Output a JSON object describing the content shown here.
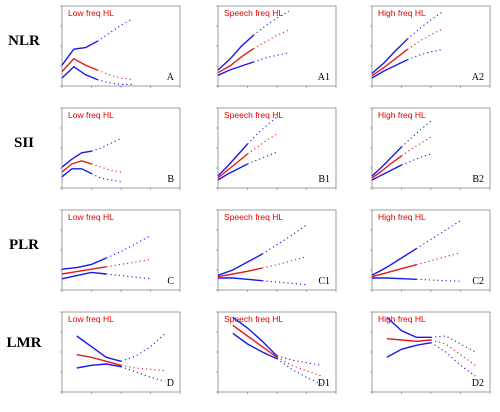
{
  "colors": {
    "fit": "#1a1ae6",
    "ci": "#e61a1a",
    "axis": "#777777",
    "title": "#e60000",
    "text": "#000000"
  },
  "chart_data": [
    {
      "type": "line",
      "row": "NLR",
      "title": "Low freq HL",
      "panel_label": "A",
      "x": [
        0,
        2,
        4,
        6,
        8,
        10,
        12
      ],
      "y": [
        0.9,
        1.7,
        1.3,
        1.0,
        0.7,
        0.5,
        0.4
      ],
      "ci_low": [
        0.5,
        1.2,
        0.7,
        0.4,
        0.2,
        0.1,
        0.1
      ],
      "ci_high": [
        1.3,
        2.3,
        2.4,
        2.8,
        3.3,
        3.8,
        4.2
      ],
      "xlim": [
        0,
        20
      ],
      "ylim": [
        0,
        5
      ]
    },
    {
      "type": "line",
      "row": "NLR",
      "title": "Speech freq HL",
      "panel_label": "A1",
      "x": [
        0,
        2,
        4,
        6,
        8,
        10,
        12
      ],
      "y": [
        1.0,
        1.5,
        2.2,
        2.8,
        3.3,
        3.8,
        4.2
      ],
      "ci_low": [
        0.8,
        1.2,
        1.5,
        1.8,
        2.1,
        2.3,
        2.5
      ],
      "ci_high": [
        1.2,
        2.0,
        3.0,
        3.8,
        4.5,
        5.1,
        5.6
      ],
      "xlim": [
        0,
        20
      ],
      "ylim": [
        0,
        6
      ]
    },
    {
      "type": "line",
      "row": "NLR",
      "title": "High freq HL",
      "panel_label": "A2",
      "x": [
        0,
        2,
        4,
        6,
        8,
        10,
        12
      ],
      "y": [
        0.9,
        1.6,
        2.4,
        3.2,
        3.9,
        4.5,
        5.0
      ],
      "ci_low": [
        0.7,
        1.3,
        1.8,
        2.3,
        2.7,
        3.0,
        3.2
      ],
      "ci_high": [
        1.1,
        2.0,
        3.1,
        4.1,
        5.0,
        5.8,
        6.5
      ],
      "xlim": [
        0,
        20
      ],
      "ylim": [
        0,
        7
      ]
    },
    {
      "type": "line",
      "row": "SII",
      "title": "Low freq HL",
      "panel_label": "B",
      "x": [
        0,
        500,
        1000,
        1500,
        2000,
        2500,
        3000
      ],
      "y": [
        1.0,
        1.5,
        1.7,
        1.5,
        1.3,
        1.1,
        1.0
      ],
      "ci_low": [
        0.7,
        1.2,
        1.2,
        0.9,
        0.6,
        0.5,
        0.4
      ],
      "ci_high": [
        1.3,
        1.8,
        2.2,
        2.3,
        2.5,
        2.8,
        3.1
      ],
      "xlim": [
        0,
        6000
      ],
      "ylim": [
        0,
        5
      ]
    },
    {
      "type": "line",
      "row": "SII",
      "title": "Speech freq HL",
      "panel_label": "B1",
      "x": [
        0,
        500,
        1000,
        1500,
        2000,
        2500,
        3000
      ],
      "y": [
        1.0,
        1.8,
        2.6,
        3.4,
        4.1,
        4.8,
        5.4
      ],
      "ci_low": [
        0.8,
        1.4,
        1.9,
        2.4,
        2.8,
        3.2,
        3.6
      ],
      "ci_high": [
        1.2,
        2.2,
        3.3,
        4.4,
        5.4,
        6.3,
        7.1
      ],
      "xlim": [
        0,
        6000
      ],
      "ylim": [
        0,
        8
      ]
    },
    {
      "type": "line",
      "row": "SII",
      "title": "High freq HL",
      "panel_label": "B2",
      "x": [
        0,
        500,
        1000,
        1500,
        2000,
        2500,
        3000
      ],
      "y": [
        1.0,
        1.7,
        2.5,
        3.2,
        3.9,
        4.5,
        5.1
      ],
      "ci_low": [
        0.8,
        1.3,
        1.8,
        2.3,
        2.7,
        3.1,
        3.4
      ],
      "ci_high": [
        1.2,
        2.1,
        3.1,
        4.1,
        5.0,
        5.9,
        6.7
      ],
      "xlim": [
        0,
        6000
      ],
      "ylim": [
        0,
        8
      ]
    },
    {
      "type": "line",
      "row": "PLR",
      "title": "Low freq HL",
      "panel_label": "C",
      "x": [
        0,
        50,
        100,
        150,
        200,
        250,
        300
      ],
      "y": [
        1.0,
        1.15,
        1.3,
        1.45,
        1.6,
        1.75,
        1.9
      ],
      "ci_low": [
        0.7,
        0.9,
        1.1,
        1.0,
        0.9,
        0.8,
        0.7
      ],
      "ci_high": [
        1.3,
        1.4,
        1.6,
        2.0,
        2.4,
        2.9,
        3.4
      ],
      "xlim": [
        0,
        400
      ],
      "ylim": [
        0,
        5
      ]
    },
    {
      "type": "line",
      "row": "PLR",
      "title": "Speech freq HL",
      "panel_label": "C1",
      "x": [
        0,
        50,
        100,
        150,
        200,
        250,
        300
      ],
      "y": [
        1.0,
        1.2,
        1.4,
        1.65,
        1.9,
        2.2,
        2.5
      ],
      "ci_low": [
        0.9,
        0.9,
        0.8,
        0.7,
        0.6,
        0.5,
        0.4
      ],
      "ci_high": [
        1.1,
        1.5,
        2.1,
        2.7,
        3.4,
        4.1,
        4.9
      ],
      "xlim": [
        0,
        400
      ],
      "ylim": [
        0,
        6
      ]
    },
    {
      "type": "line",
      "row": "PLR",
      "title": "High freq HL",
      "panel_label": "C2",
      "x": [
        0,
        50,
        100,
        150,
        200,
        250,
        300
      ],
      "y": [
        1.0,
        1.3,
        1.6,
        1.9,
        2.2,
        2.5,
        2.8
      ],
      "ci_low": [
        0.9,
        0.9,
        0.85,
        0.8,
        0.75,
        0.7,
        0.65
      ],
      "ci_high": [
        1.1,
        1.7,
        2.4,
        3.1,
        3.8,
        4.5,
        5.2
      ],
      "xlim": [
        0,
        400
      ],
      "ylim": [
        0,
        6
      ]
    },
    {
      "type": "line",
      "row": "LMR",
      "title": "Low freq HL",
      "panel_label": "D",
      "x": [
        1,
        2,
        3,
        4,
        5,
        6,
        7
      ],
      "y": [
        1.4,
        1.3,
        1.15,
        1.0,
        0.9,
        0.85,
        0.8
      ],
      "ci_low": [
        0.9,
        1.0,
        1.05,
        0.95,
        0.75,
        0.55,
        0.4
      ],
      "ci_high": [
        2.1,
        1.7,
        1.3,
        1.15,
        1.35,
        1.7,
        2.2
      ],
      "xlim": [
        0,
        8
      ],
      "ylim": [
        0,
        3
      ]
    },
    {
      "type": "line",
      "row": "LMR",
      "title": "Speech freq HL",
      "panel_label": "D1",
      "x": [
        1,
        2,
        3,
        4,
        5,
        6,
        7
      ],
      "y": [
        2.5,
        2.1,
        1.7,
        1.3,
        1.0,
        0.8,
        0.6
      ],
      "ci_low": [
        2.2,
        1.8,
        1.5,
        1.25,
        0.85,
        0.55,
        0.3
      ],
      "ci_high": [
        2.8,
        2.4,
        1.9,
        1.35,
        1.2,
        1.1,
        1.0
      ],
      "xlim": [
        0,
        8
      ],
      "ylim": [
        0,
        3
      ]
    },
    {
      "type": "line",
      "row": "LMR",
      "title": "High freq HL",
      "panel_label": "D2",
      "x": [
        1,
        2,
        3,
        4,
        5,
        6,
        7
      ],
      "y": [
        2.0,
        1.95,
        1.9,
        1.95,
        1.8,
        1.4,
        1.0
      ],
      "ci_low": [
        1.3,
        1.6,
        1.75,
        1.85,
        1.5,
        1.0,
        0.6
      ],
      "ci_high": [
        2.8,
        2.3,
        2.05,
        2.05,
        2.1,
        1.8,
        1.5
      ],
      "xlim": [
        0,
        8
      ],
      "ylim": [
        0,
        3
      ]
    }
  ],
  "rows": [
    "NLR",
    "SII",
    "PLR",
    "LMR"
  ]
}
